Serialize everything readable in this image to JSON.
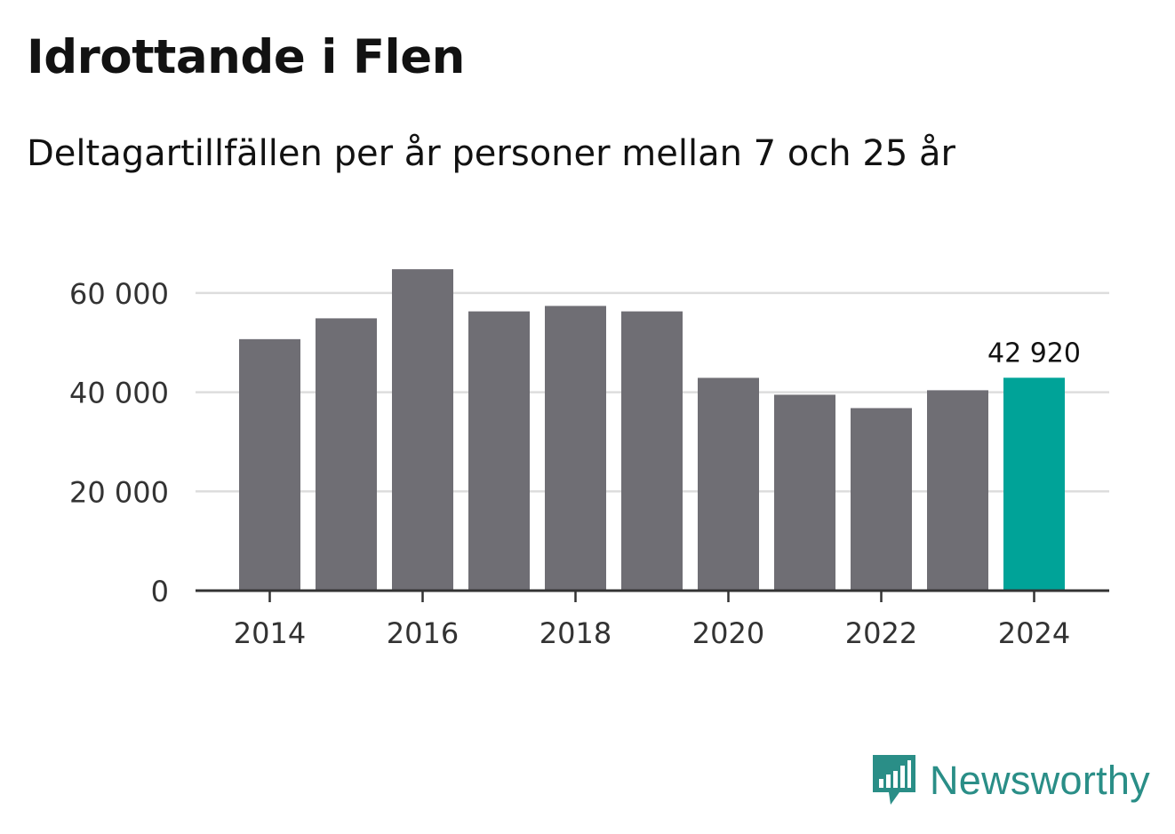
{
  "header": {
    "title": "Idrottande i Flen",
    "subtitle": "Deltagartillfällen per år personer mellan 7 och 25 år"
  },
  "chart_data": {
    "type": "bar",
    "categories": [
      "2014",
      "2015",
      "2016",
      "2017",
      "2018",
      "2019",
      "2020",
      "2021",
      "2022",
      "2023",
      "2024"
    ],
    "values": [
      50700,
      54900,
      64800,
      56300,
      57400,
      56300,
      42900,
      39500,
      36800,
      40400,
      42920
    ],
    "title": "Idrottande i Flen",
    "xlabel": "",
    "ylabel": "",
    "ylim": [
      0,
      65000
    ],
    "yticks": [
      0,
      20000,
      40000,
      60000
    ],
    "ytick_labels": [
      "0",
      "20 000",
      "40 000",
      "60 000"
    ],
    "xtick_labels": [
      "2014",
      "2016",
      "2018",
      "2020",
      "2022",
      "2024"
    ],
    "grid": true,
    "highlight_index": 10,
    "annotation": "42 920",
    "colors": {
      "bar": "#6f6e74",
      "highlight": "#00a398",
      "grid": "#dddddd",
      "axis": "#333333"
    }
  },
  "brand": {
    "name": "Newsworthy",
    "color": "#2a8e87"
  }
}
